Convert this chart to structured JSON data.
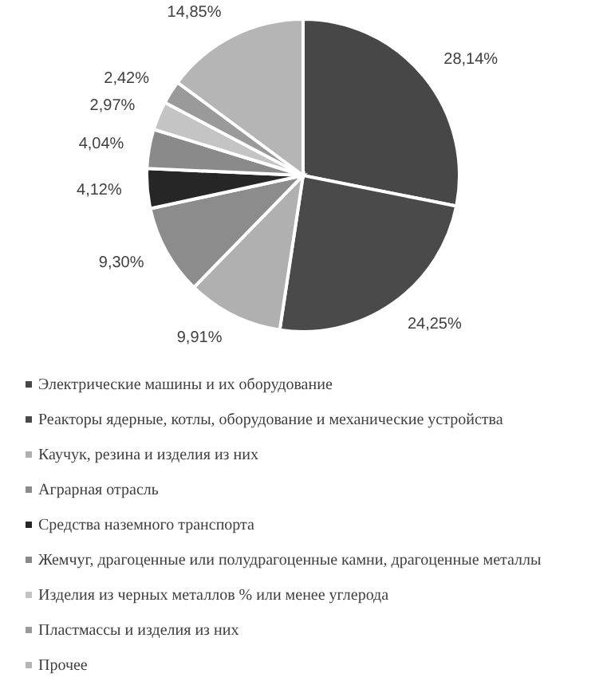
{
  "chart_data": {
    "type": "pie",
    "categories": [
      "Электрические машины и их оборудование",
      "Реакторы ядерные, котлы, оборудование и механические устройства",
      "Каучук, резина и изделия из них",
      "Аграрная отрасль",
      "Средства наземного транспорта",
      "Жемчуг, драгоценные или полудрагоценные камни, драгоценные металлы",
      "Изделия из черных металлов % или менее углерода",
      "Пластмассы и изделия из них",
      "Прочее"
    ],
    "values": [
      28.14,
      24.25,
      9.91,
      9.3,
      4.12,
      4.04,
      2.97,
      2.42,
      14.85
    ],
    "value_labels": [
      "28,14%",
      "24,25%",
      "9,91%",
      "9,30%",
      "4,12%",
      "4,04%",
      "2,97%",
      "2,42%",
      "14,85%"
    ],
    "colors": [
      "#474747",
      "#4a4a4a",
      "#b0b0b0",
      "#8c8c8c",
      "#262626",
      "#8a8a8a",
      "#c4c4c4",
      "#9a9a9a",
      "#b5b5b5"
    ],
    "legend": "bottom"
  }
}
